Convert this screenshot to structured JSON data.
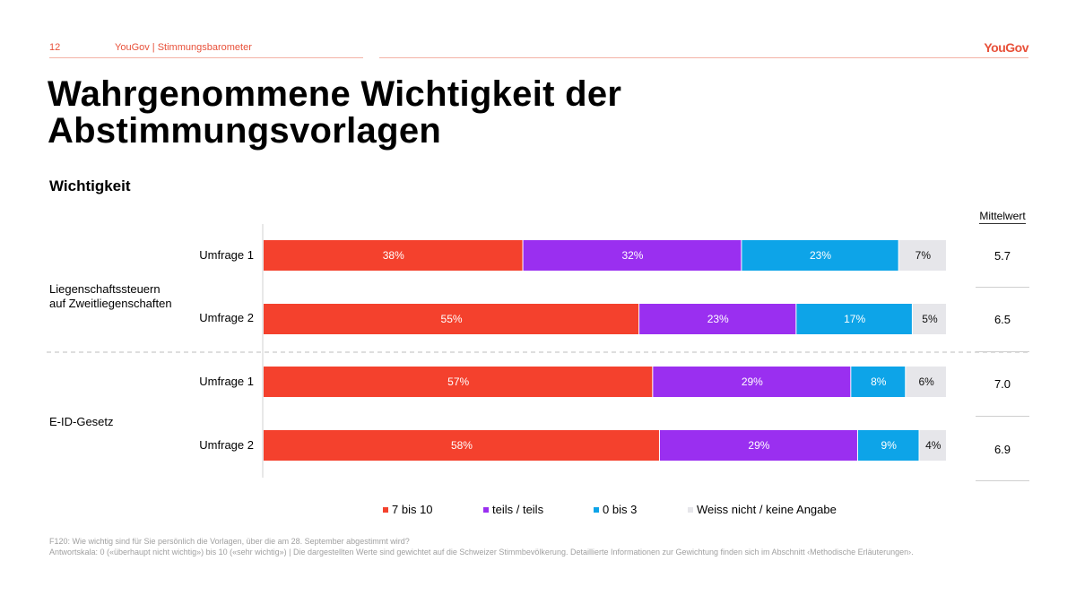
{
  "header": {
    "page_number": "12",
    "source": "YouGov | Stimmungsbarometer",
    "logo": "YouGov"
  },
  "title": "Wahrgenommene Wichtigkeit der Abstimmungsvorlagen",
  "subtitle": "Wichtigkeit",
  "mittelwert_header": "Mittelwert",
  "groups": [
    {
      "label_line1": "Liegenschaftssteuern",
      "label_line2": "auf Zweitliegenschaften"
    },
    {
      "label_line1": "E-ID-Gesetz",
      "label_line2": ""
    }
  ],
  "colors": {
    "7 bis 10": "#f4412d",
    "teils / teils": "#9a2ff0",
    "0 bis 3": "#0da4e8",
    "Weiss nicht / keine Angabe": "#e6e6ea"
  },
  "chart_data": {
    "type": "bar",
    "orientation": "horizontal",
    "stacked": true,
    "title": "Wichtigkeit",
    "categories": [
      "Liegenschaftssteuern auf Zweitliegenschaften – Umfrage 1",
      "Liegenschaftssteuern auf Zweitliegenschaften – Umfrage 2",
      "E-ID-Gesetz – Umfrage 1",
      "E-ID-Gesetz – Umfrage 2"
    ],
    "row_labels": [
      "Umfrage 1",
      "Umfrage 2",
      "Umfrage 1",
      "Umfrage 2"
    ],
    "row_groups": [
      0,
      0,
      1,
      1
    ],
    "series": [
      {
        "name": "7 bis 10",
        "values": [
          38,
          55,
          57,
          58
        ]
      },
      {
        "name": "teils / teils",
        "values": [
          32,
          23,
          29,
          29
        ]
      },
      {
        "name": "0 bis 3",
        "values": [
          23,
          17,
          8,
          9
        ]
      },
      {
        "name": "Weiss nicht / keine Angabe",
        "values": [
          7,
          5,
          6,
          4
        ]
      }
    ],
    "mittelwert": [
      "5.7",
      "6.5",
      "7.0",
      "6.9"
    ],
    "xlim": [
      0,
      100
    ],
    "legend_position": "bottom"
  },
  "footnote": {
    "line1": "F120: Wie wichtig sind für Sie persönlich die Vorlagen, über die am 28. September abgestimmt wird?",
    "line2": "Antwortskala: 0 («überhaupt nicht wichtig») bis 10 («sehr wichtig») | Die dargestellten Werte sind gewichtet auf die Schweizer Stimmbevölkerung. Detaillierte Informationen zur Gewichtung finden sich im Abschnitt ‹Methodische Erläuterungen›."
  }
}
